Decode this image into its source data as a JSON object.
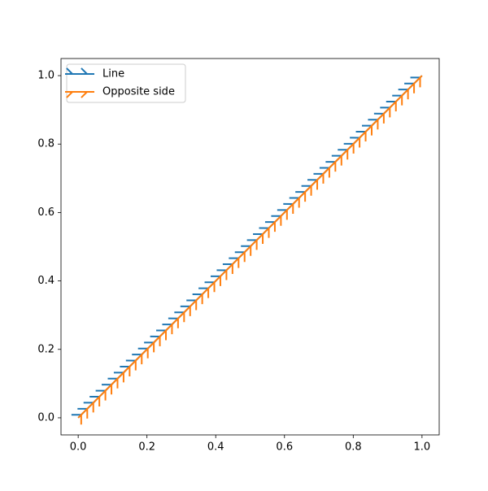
{
  "chart_data": {
    "type": "line",
    "x": [
      0,
      1
    ],
    "series": [
      {
        "name": "Line",
        "color": "#1f77b4",
        "values": [
          0,
          1
        ],
        "tick_angle": 135
      },
      {
        "name": "Opposite side",
        "color": "#ff7f0e",
        "values": [
          0,
          1
        ],
        "tick_angle": -135
      }
    ],
    "xlim": [
      -0.05,
      1.05
    ],
    "ylim": [
      -0.05,
      1.05
    ],
    "xticks": [
      {
        "value": 0,
        "label": "0.0"
      },
      0.2,
      0.4,
      0.6,
      0.8,
      {
        "value": 1,
        "label": "1.0"
      }
    ],
    "yticks": [
      {
        "value": 0,
        "label": "0.0"
      },
      0.2,
      0.4,
      0.6,
      0.8,
      {
        "value": 1,
        "label": "1.0"
      }
    ],
    "legend": "upper left"
  }
}
